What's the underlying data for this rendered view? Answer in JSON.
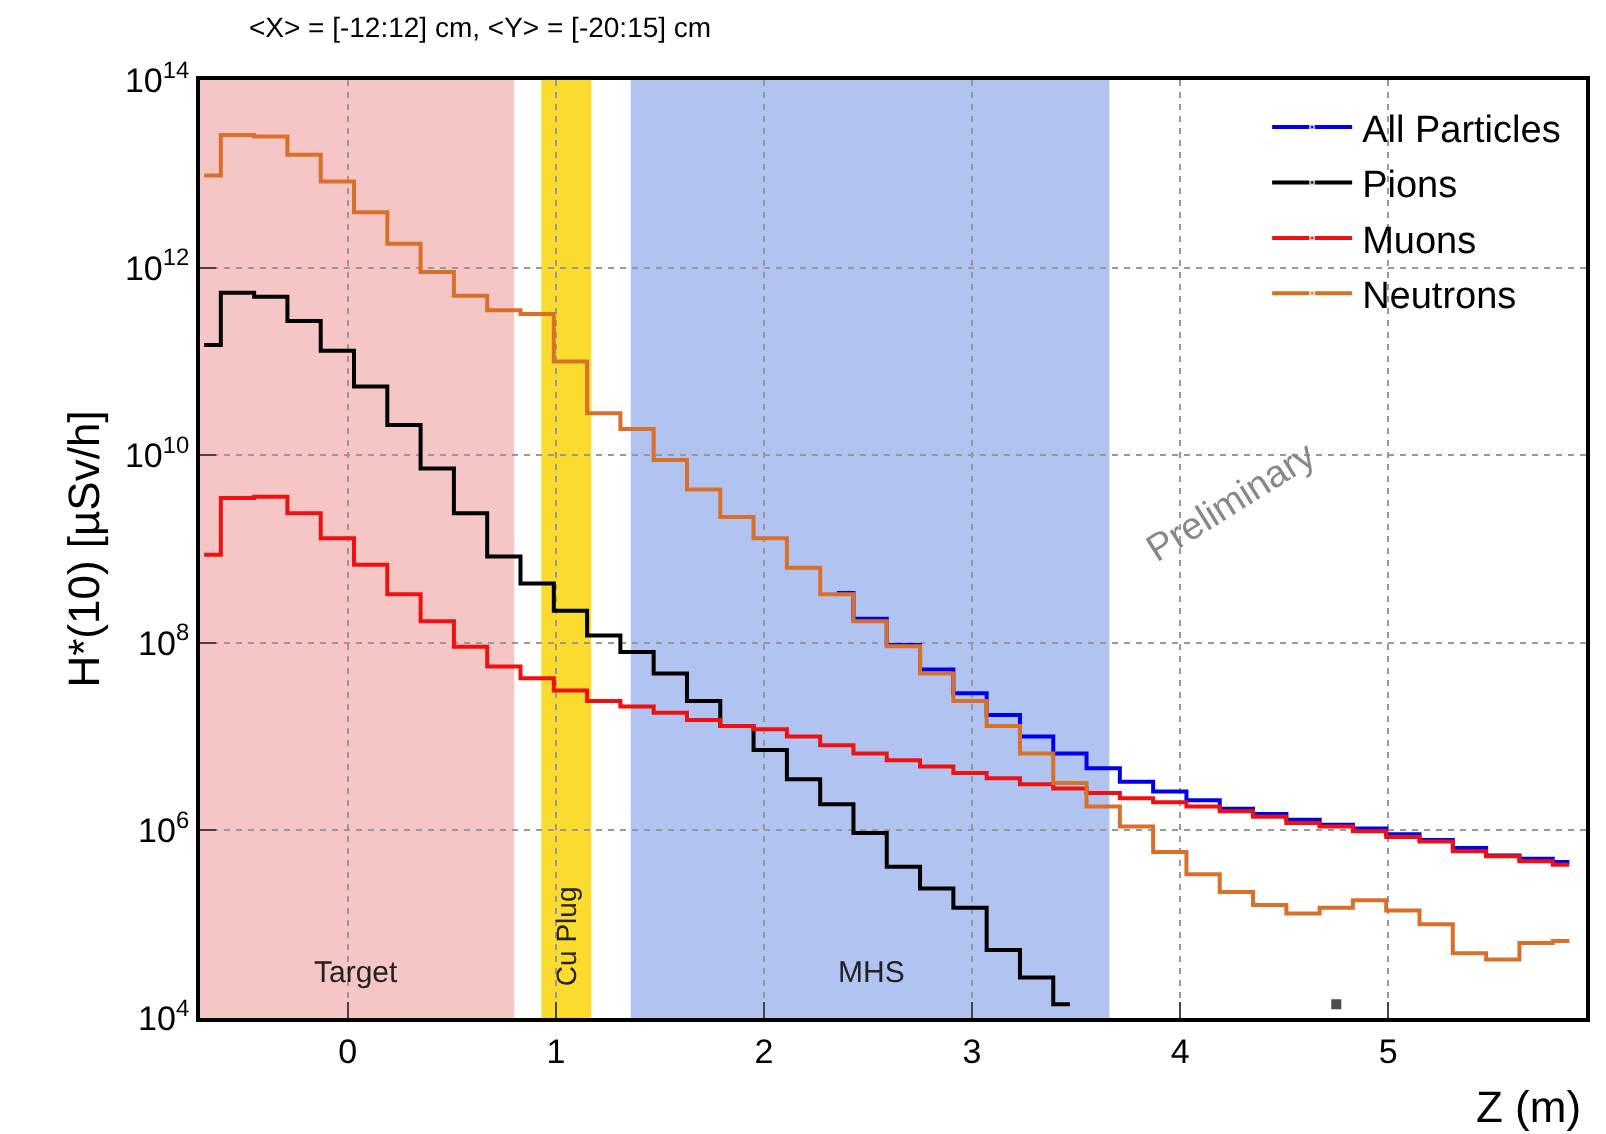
{
  "chart_data": {
    "type": "step",
    "title": "<X> = [-12:12] cm, <Y> = [-20:15] cm",
    "xlabel": "Z (m)",
    "ylabel": "H*(10) [µSv/h]",
    "x": [
      -0.69,
      -0.53,
      -0.37,
      -0.21,
      -0.05,
      0.11,
      0.27,
      0.43,
      0.59,
      0.75,
      0.91,
      1.07,
      1.23,
      1.39,
      1.55,
      1.71,
      1.87,
      2.03,
      2.19,
      2.35,
      2.51,
      2.67,
      2.83,
      2.99,
      3.15,
      3.31,
      3.47,
      3.63,
      3.79,
      3.95,
      4.11,
      4.27,
      4.43,
      4.59,
      4.75,
      4.91,
      5.07,
      5.23,
      5.39,
      5.55,
      5.71,
      5.87
    ],
    "series": [
      {
        "name": "All Particles",
        "color": "#0000ee",
        "values": [
          null,
          null,
          null,
          null,
          null,
          null,
          null,
          null,
          null,
          null,
          null,
          null,
          null,
          null,
          null,
          null,
          null,
          null,
          null,
          340000000.0,
          180000000.0,
          95000000.0,
          52000000.0,
          29000000.0,
          17000000.0,
          10000000.0,
          6600000.0,
          4600000.0,
          3300000.0,
          2600000.0,
          2100000.0,
          1700000.0,
          1500000.0,
          1300000.0,
          1150000.0,
          1050000.0,
          910000.0,
          790000.0,
          650000.0,
          540000.0,
          500000.0,
          460000.0
        ]
      },
      {
        "name": "Pions",
        "color": "#000000",
        "values": [
          150000000000.0,
          540000000000.0,
          490000000000.0,
          270000000000.0,
          130000000000.0,
          54000000000.0,
          21000000000.0,
          7200000000.0,
          2400000000.0,
          830000000.0,
          430000000.0,
          220000000.0,
          120000000.0,
          80000000.0,
          47000000.0,
          24000000.0,
          13000000.0,
          7200000.0,
          3500000.0,
          1900000.0,
          940000.0,
          410000.0,
          240000.0,
          150000.0,
          53000.0,
          27000.0,
          14000.0,
          null,
          null,
          null,
          null,
          null,
          null,
          null,
          14000.0,
          null,
          null,
          null,
          null,
          null,
          null,
          null
        ]
      },
      {
        "name": "Muons",
        "color": "#ee1111",
        "values": [
          870000000.0,
          3500000000.0,
          3600000000.0,
          2400000000.0,
          1300000000.0,
          680000000.0,
          330000000.0,
          170000000.0,
          91000000.0,
          56000000.0,
          42000000.0,
          31000000.0,
          24000000.0,
          21000000.0,
          18000000.0,
          15000000.0,
          13000000.0,
          12000000.0,
          10000000.0,
          8100000.0,
          6600000.0,
          5600000.0,
          4800000.0,
          4100000.0,
          3600000.0,
          3100000.0,
          2800000.0,
          2500000.0,
          2200000.0,
          2000000.0,
          1800000.0,
          1600000.0,
          1400000.0,
          1200000.0,
          1100000.0,
          980000.0,
          850000.0,
          760000.0,
          600000.0,
          530000.0,
          470000.0,
          430000.0
        ]
      },
      {
        "name": "Neutrons",
        "color": "#d9702a",
        "values": [
          9600000000000.0,
          26000000000000.0,
          25000000000000.0,
          16000000000000.0,
          8300000000000.0,
          3900000000000.0,
          1800000000000.0,
          900000000000.0,
          500000000000.0,
          350000000000.0,
          320000000000.0,
          100000000000.0,
          28000000000.0,
          19000000000.0,
          8900000000.0,
          4300000000.0,
          2200000000.0,
          1300000000.0,
          630000000.0,
          330000000.0,
          170000000.0,
          92000000.0,
          47000000.0,
          24000000.0,
          13000000.0,
          6600000.0,
          3200000.0,
          1800000.0,
          1100000.0,
          590000.0,
          340000.0,
          220000.0,
          160000.0,
          130000.0,
          150000.0,
          180000.0,
          140000.0,
          100000.0,
          49000.0,
          42000.0,
          63000.0,
          66000.0
        ]
      }
    ],
    "bands": [
      {
        "axis": "x",
        "from": -0.71,
        "to": 0.8,
        "label": "Target",
        "color": "#f6c6c6"
      },
      {
        "axis": "x",
        "from": 0.93,
        "to": 1.17,
        "label": "Cu Plug",
        "color": "#fbdc2e"
      },
      {
        "axis": "x",
        "from": 1.36,
        "to": 3.66,
        "label": "MHS",
        "color": "#b1c3f0"
      }
    ],
    "annotations": [
      "Preliminary"
    ],
    "log": true,
    "xlim": [
      -0.71,
      5.95
    ],
    "xticks": [
      0,
      1,
      2,
      3,
      4,
      5
    ],
    "ylim": [
      10000,
      100000000000000.0
    ],
    "yticks": [
      {
        "value": 10000,
        "label": "10$^{4}$"
      },
      {
        "value": 1000000,
        "label": "10$^{6}$"
      },
      {
        "value": 100000000,
        "label": "10$^{8}$"
      },
      {
        "value": 10000000000,
        "label": "10$^{10}$"
      },
      {
        "value": 1000000000000,
        "label": "10$^{12}$"
      },
      {
        "value": 100000000000000.0,
        "label": "10$^{14}$"
      }
    ],
    "grid": true,
    "legend": "top right",
    "marker": "none",
    "line_style": "solid"
  }
}
